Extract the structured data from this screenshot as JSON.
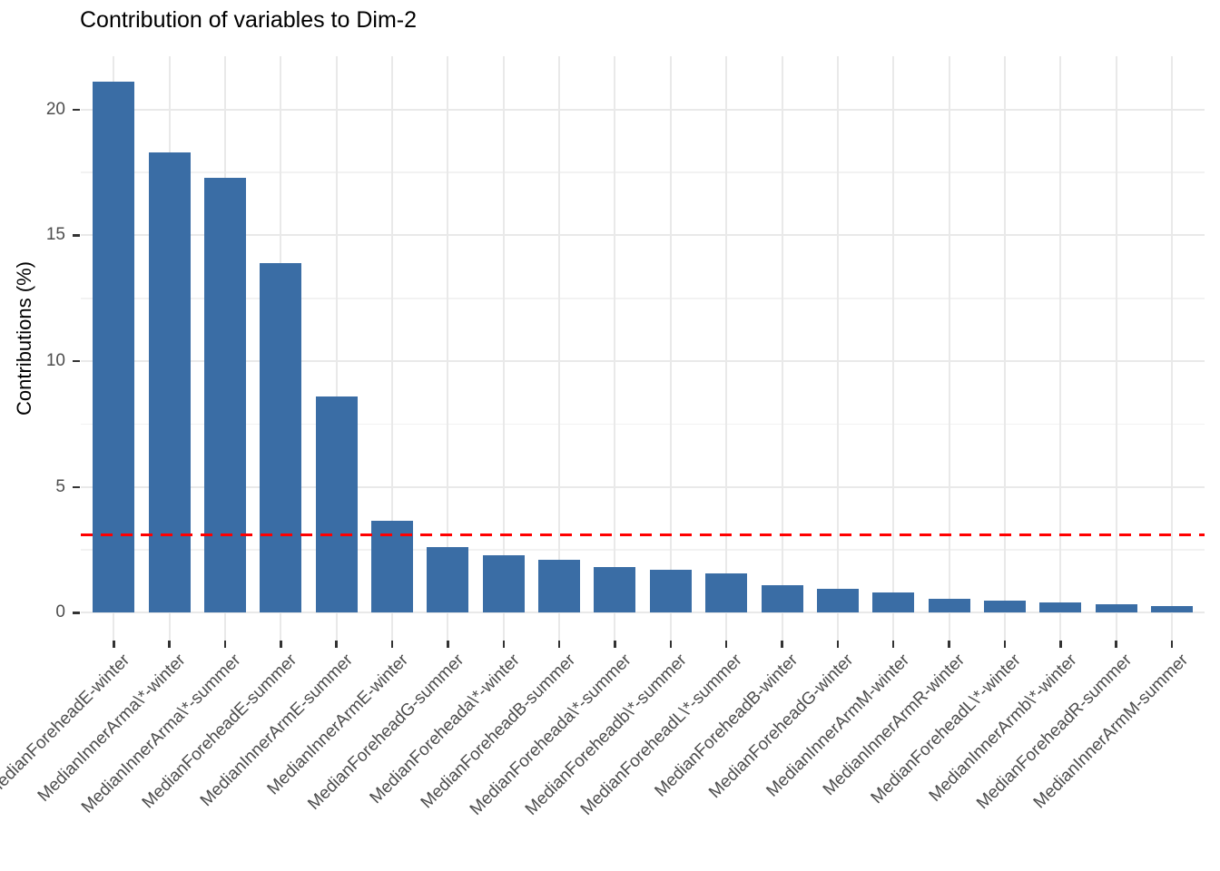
{
  "chart_data": {
    "type": "bar",
    "title": "Contribution of variables to Dim-2",
    "xlabel": "",
    "ylabel": "Contributions (%)",
    "categories": [
      "MedianForeheadE-winter",
      "MedianInnerArma\\*-winter",
      "MedianInnerArma\\*-summer",
      "MedianForeheadE-summer",
      "MedianInnerArmE-summer",
      "MedianInnerArmE-winter",
      "MedianForeheadG-summer",
      "MedianForeheada\\*-winter",
      "MedianForeheadB-summer",
      "MedianForeheada\\*-summer",
      "MedianForeheadb\\*-summer",
      "MedianForeheadL\\*-summer",
      "MedianForeheadB-winter",
      "MedianForeheadG-winter",
      "MedianInnerArmM-winter",
      "MedianInnerArmR-winter",
      "MedianForeheadL\\*-winter",
      "MedianInnerArmb\\*-winter",
      "MedianForeheadR-summer",
      "MedianInnerArmM-summer"
    ],
    "values": [
      21.1,
      18.3,
      17.3,
      13.9,
      8.6,
      3.65,
      2.6,
      2.3,
      2.1,
      1.8,
      1.7,
      1.55,
      1.1,
      0.95,
      0.8,
      0.57,
      0.5,
      0.42,
      0.35,
      0.28
    ],
    "y_ticks": [
      0,
      5,
      10,
      15,
      20
    ],
    "y_minor_gridlines": [
      2.5,
      7.5,
      12.5,
      17.5
    ],
    "ylim": [
      0,
      22.1
    ],
    "bar_color": "#3a6da5",
    "grid": "on",
    "legend": "none",
    "ref_line": {
      "value": 3.1,
      "color": "#ff0000",
      "style": "dashed"
    }
  }
}
